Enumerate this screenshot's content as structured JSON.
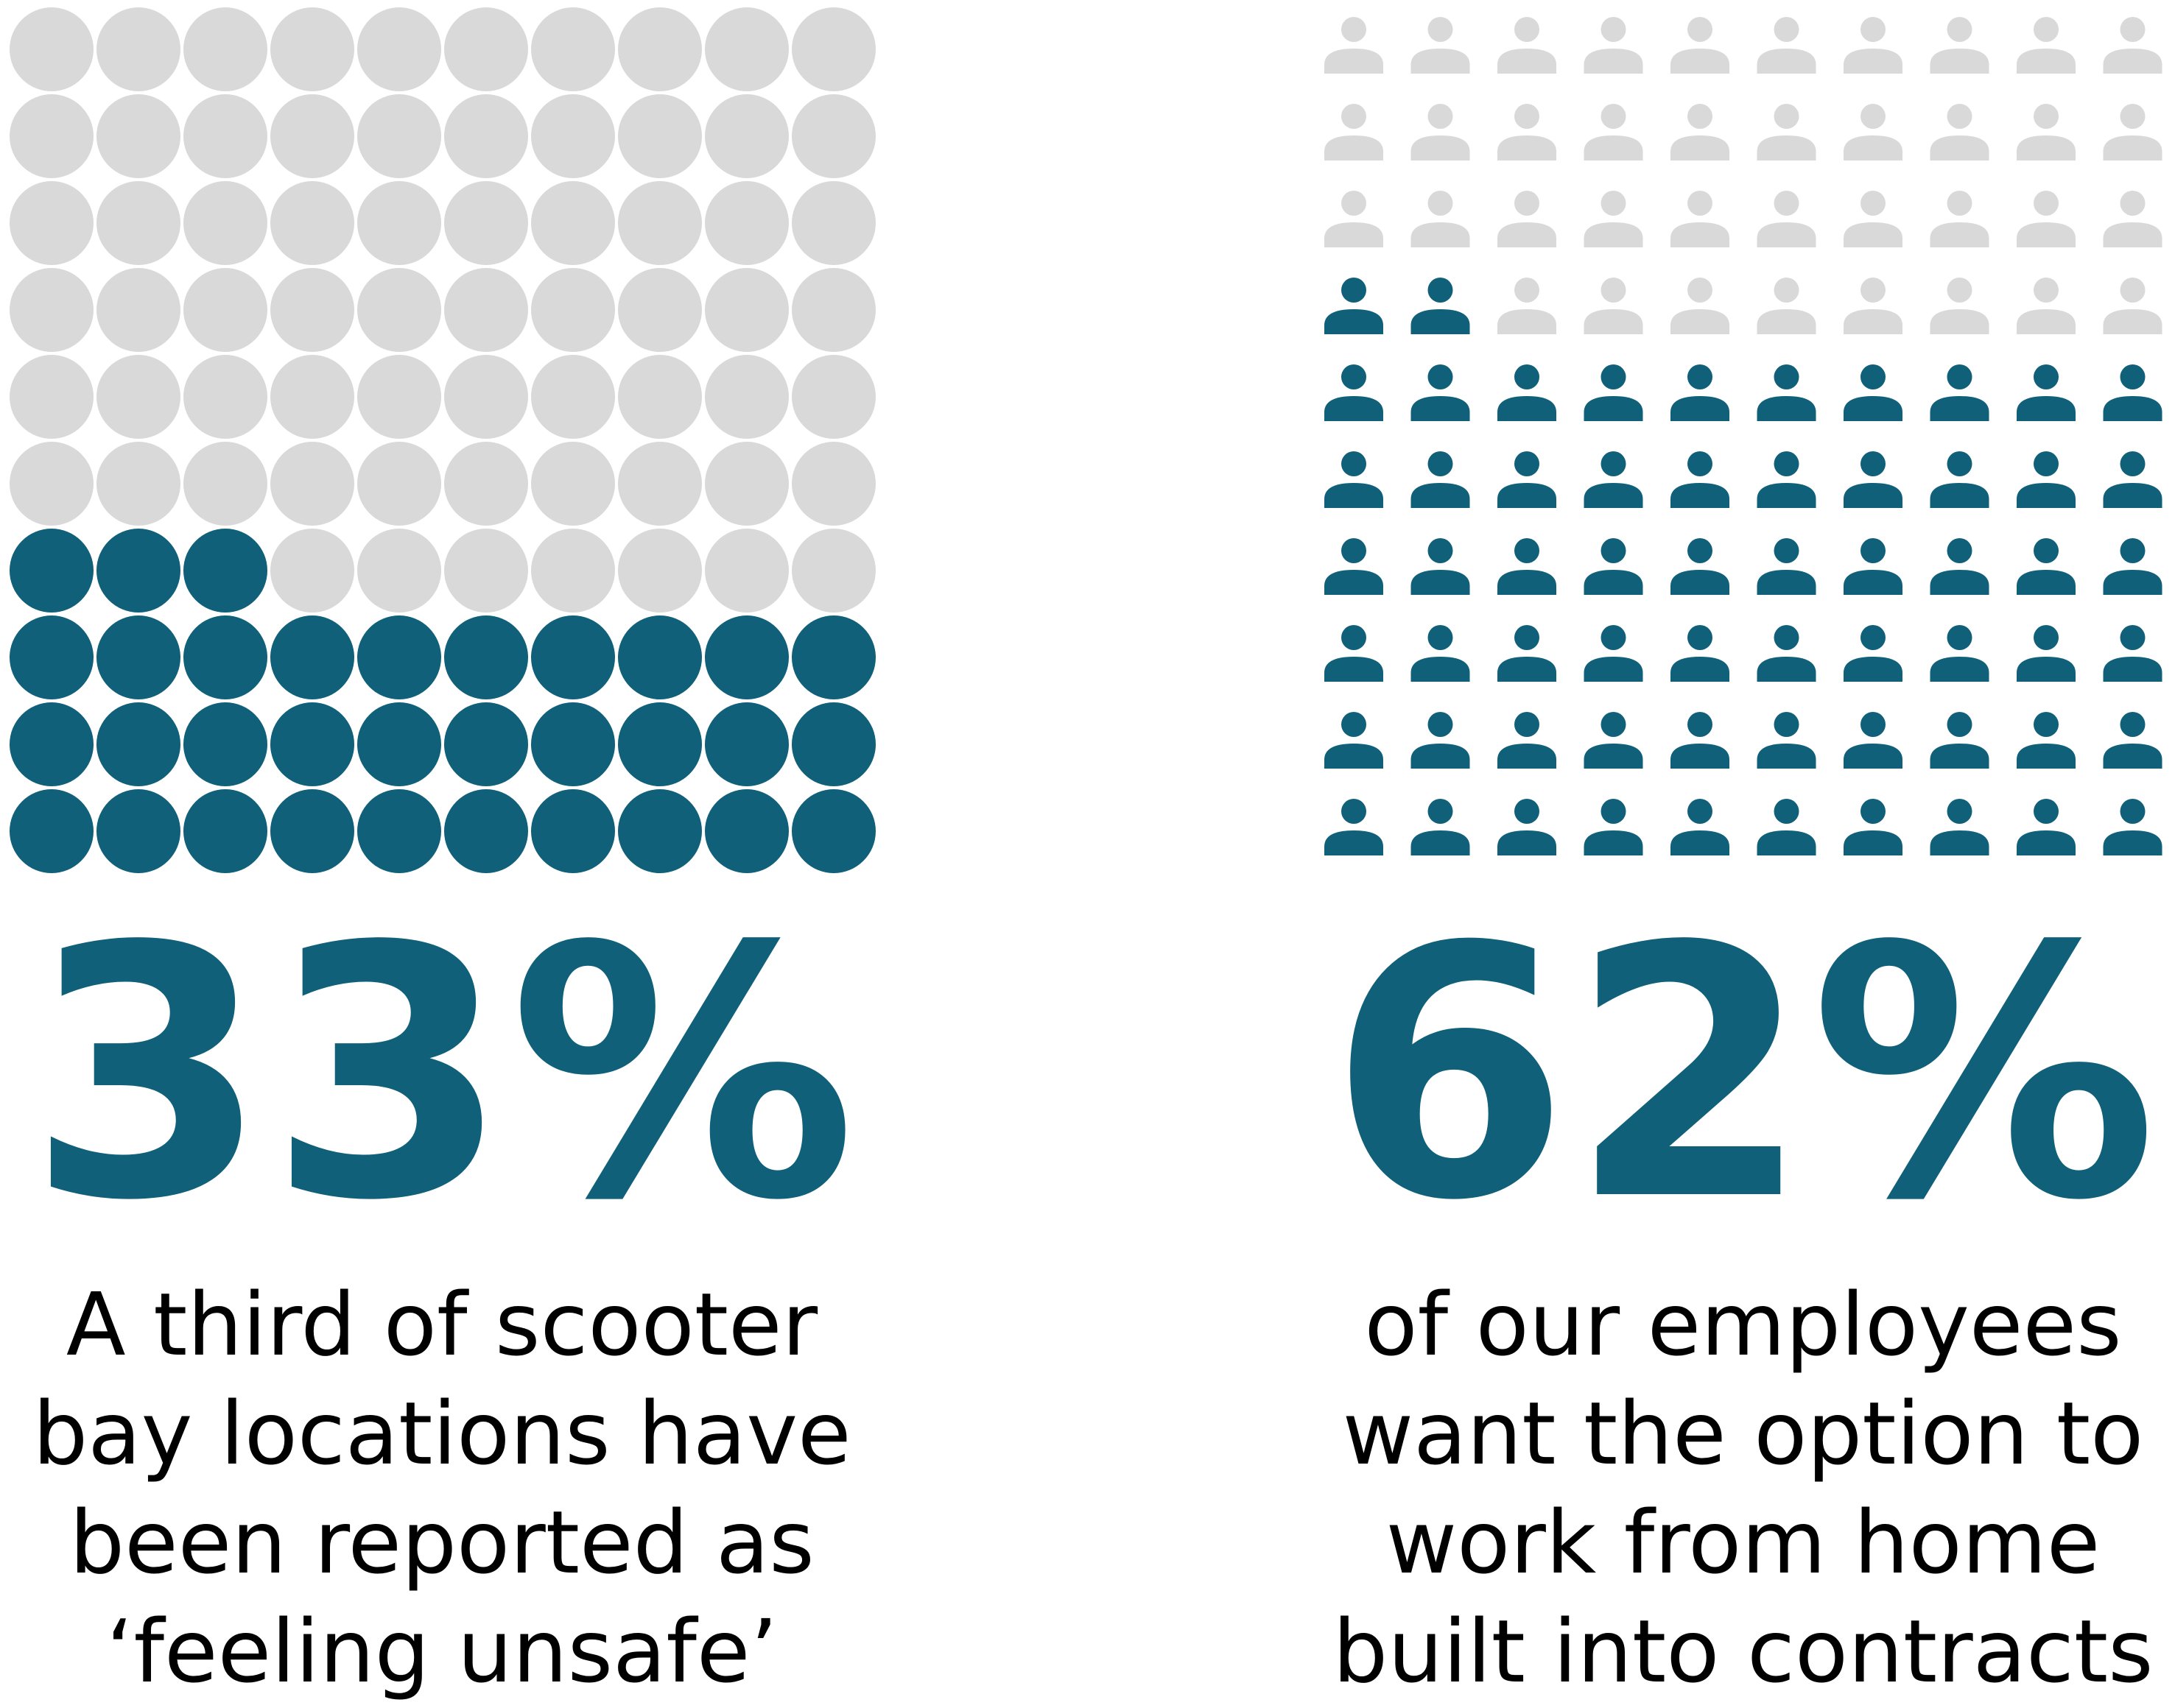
{
  "colors": {
    "highlight": "#0f6078",
    "muted": "#d9d9d9",
    "text": "#000000"
  },
  "chart_data": [
    {
      "type": "waffle",
      "icon": "circle",
      "rows": 10,
      "cols": 10,
      "total": 100,
      "filled": 33,
      "value_label": "33%",
      "caption_lines": [
        "A third of scooter",
        "bay locations have",
        "been reported as",
        "‘feeling unsafe’"
      ]
    },
    {
      "type": "waffle",
      "icon": "person-icon",
      "rows": 10,
      "cols": 10,
      "total": 100,
      "filled": 62,
      "value_label": "62%",
      "caption_lines": [
        "of our employees",
        "want the option to",
        "work from home",
        "built into contracts"
      ]
    }
  ]
}
